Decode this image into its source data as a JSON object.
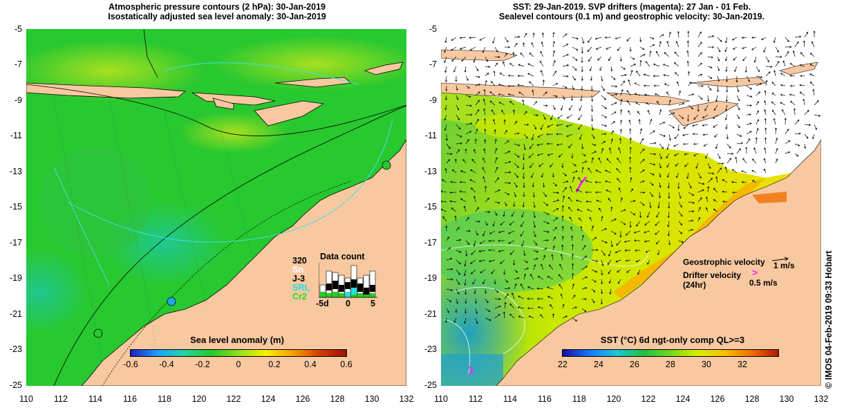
{
  "left_panel": {
    "title_line1": "Atmospheric pressure contours (2 hPa): 30-Jan-2019",
    "title_line2": "Isostatically adjusted sea level anomaly: 30-Jan-2019",
    "colorbar_title": "Sea level anomaly (m)",
    "colorbar_ticks": [
      "-0.6",
      "-0.4",
      "-0.2",
      "0",
      "0.2",
      "0.4",
      "0.6"
    ],
    "colorbar_colors": [
      "#2020c0",
      "#1ea0ff",
      "#20d8a0",
      "#24c828",
      "#90e020",
      "#f8f000",
      "#f8a000",
      "#d04000",
      "#a01000"
    ],
    "data_count": {
      "title": "Data count",
      "max_label": "320",
      "series": [
        {
          "label": "Sn",
          "color": "#ffffff"
        },
        {
          "label": "J-3",
          "color": "#000000"
        },
        {
          "label": "SRL",
          "color": "#20e0e0"
        },
        {
          "label": "Cr2",
          "color": "#20d020"
        }
      ],
      "x_ticks": [
        "-5d",
        "0",
        "5"
      ]
    }
  },
  "right_panel": {
    "title_line1": "SST: 29-Jan-2019. SVP drifters (magenta): 27 Jan - 01 Feb.",
    "title_line2": "Sealevel contours (0.1 m) and geostrophic velocity: 30-Jan-2019.",
    "colorbar_title": "SST (°C) 6d ngt-only comp QL>=3",
    "colorbar_ticks": [
      "22",
      "24",
      "26",
      "28",
      "30",
      "32"
    ],
    "colorbar_colors": [
      "#1010a0",
      "#1878ff",
      "#18c8d8",
      "#20c040",
      "#70d820",
      "#d8f000",
      "#f8c000",
      "#f07000",
      "#b01800"
    ],
    "legend": {
      "geostrophic_label": "Geostrophic velocity",
      "geostrophic_value": "1 m/s",
      "drifter_label_line1": "Drifter velocity",
      "drifter_label_line2": "(24hr)",
      "drifter_value": "0.5 m/s"
    }
  },
  "axes": {
    "y_ticks": [
      "-5",
      "-7",
      "-9",
      "-11",
      "-13",
      "-15",
      "-17",
      "-19",
      "-21",
      "-23",
      "-25"
    ],
    "x_ticks": [
      "110",
      "112",
      "114",
      "116",
      "118",
      "120",
      "122",
      "124",
      "126",
      "128",
      "130",
      "132"
    ]
  },
  "credit": "© IMOS 04-Feb-2019 09:33 Hobart",
  "colors": {
    "land": "#f8c8a0",
    "left_sea": "#28c830",
    "right_sea": "#b8e000"
  }
}
